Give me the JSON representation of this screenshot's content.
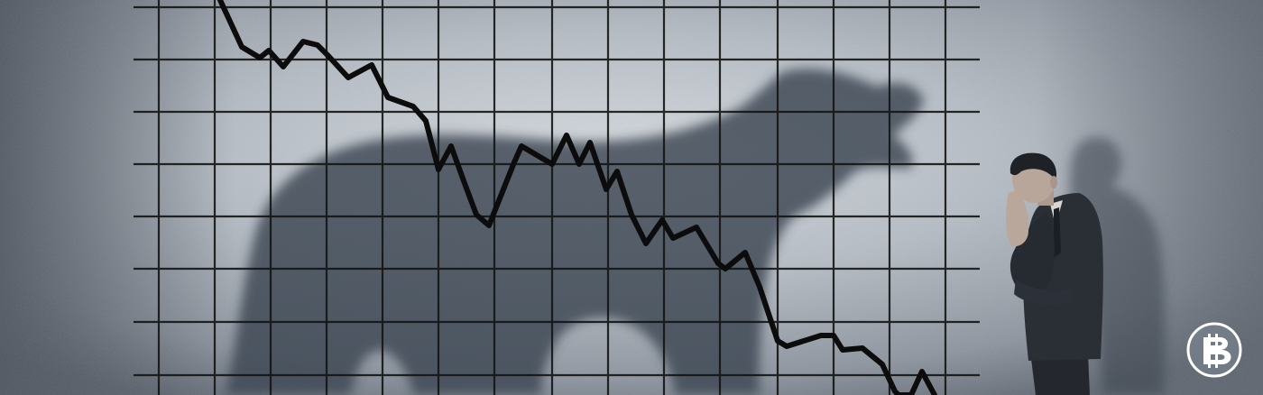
{
  "image": {
    "subject": "bear-market",
    "palette": {
      "wall_light": "#c9cfd5",
      "wall_mid": "#9ca4ad",
      "wall_dark": "#5d6570",
      "grid": "#141414",
      "line": "#0c0c0c",
      "shadow": "#3e4752",
      "suit": "#2a2e35",
      "skin": "#b9a79c",
      "badge": "#7c8794"
    },
    "badge_icon": "bitcoin-icon"
  }
}
